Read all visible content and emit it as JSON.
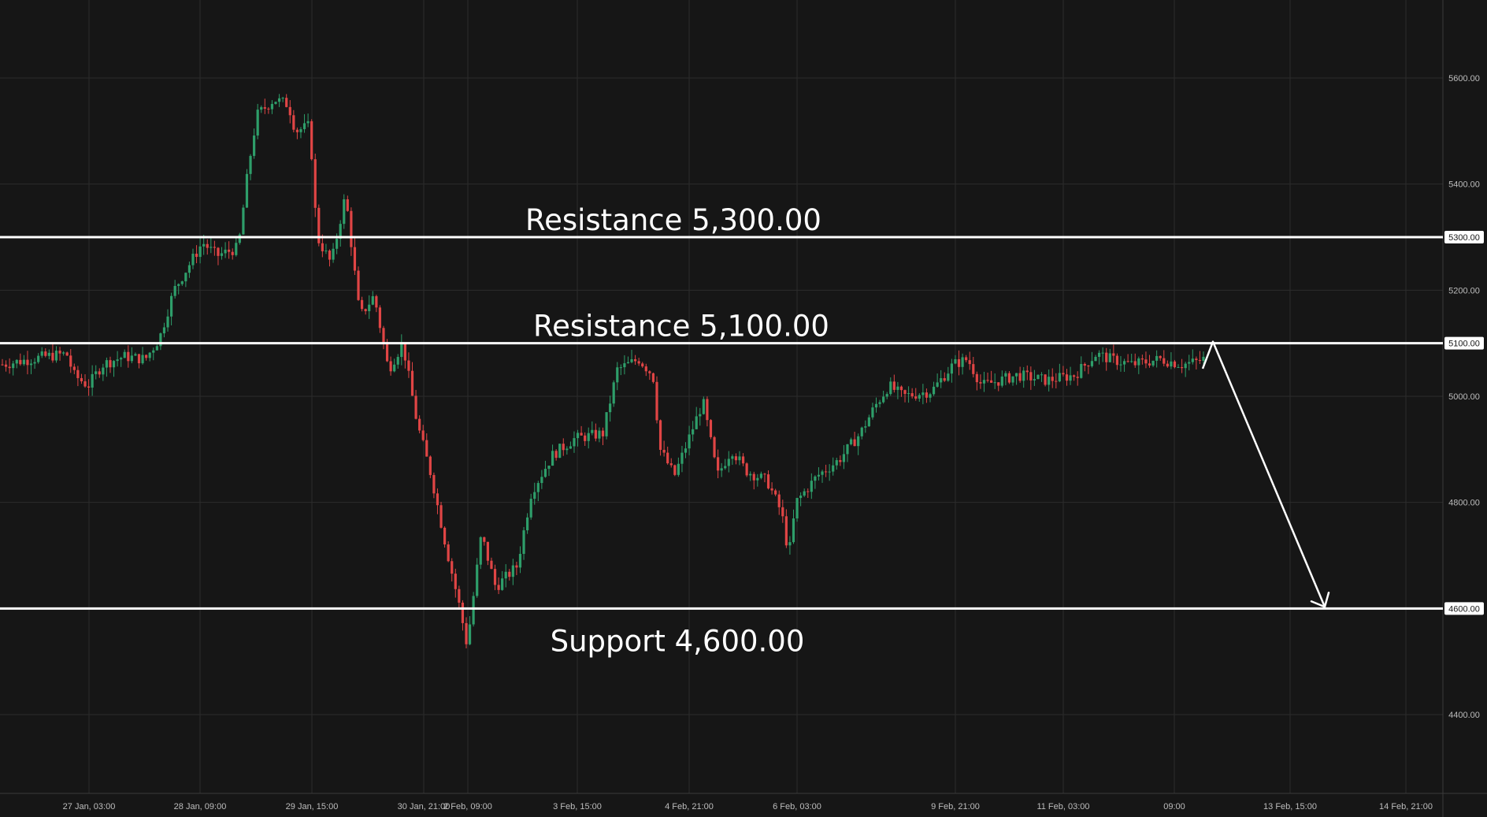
{
  "chart_data": {
    "type": "candlestick",
    "title": "",
    "y_ticks": [
      "5600.00",
      "5400.00",
      "5200.00",
      "5000.00",
      "4800.00",
      "4400.00"
    ],
    "x_ticks": [
      "27 Jan, 03:00",
      "28 Jan, 09:00",
      "29 Jan, 15:00",
      "30 Jan, 21:00",
      "2 Feb, 09:00",
      "3 Feb, 15:00",
      "4 Feb, 21:00",
      "6 Feb, 03:00",
      "9 Feb, 21:00",
      "11 Feb, 03:00",
      "09:00",
      "13 Feb, 15:00",
      "14 Feb, 21:00"
    ],
    "levels": [
      {
        "label": "Resistance 5,300.00",
        "price": 5300,
        "badge": "5300.00"
      },
      {
        "label": "Resistance 5,100.00",
        "price": 5100,
        "badge": "5100.00"
      },
      {
        "label": "Support 4,600.00",
        "price": 4600,
        "badge": "4600.00"
      }
    ],
    "ylim": [
      4250,
      5700
    ],
    "grid": true,
    "colors": {
      "background": "#161616",
      "grid": "#2c2c2c",
      "up": "#2e9e6a",
      "down": "#e04545",
      "level_line": "#ffffff",
      "badge": "#ffffff",
      "axis_text": "#bdbdbd"
    },
    "price_path": [
      [
        0,
        5060
      ],
      [
        0.03,
        5075
      ],
      [
        0.045,
        5080
      ],
      [
        0.05,
        5040
      ],
      [
        0.06,
        5020
      ],
      [
        0.07,
        5060
      ],
      [
        0.085,
        5075
      ],
      [
        0.1,
        5070
      ],
      [
        0.11,
        5110
      ],
      [
        0.12,
        5200
      ],
      [
        0.14,
        5290
      ],
      [
        0.15,
        5265
      ],
      [
        0.165,
        5280
      ],
      [
        0.172,
        5430
      ],
      [
        0.178,
        5530
      ],
      [
        0.19,
        5560
      ],
      [
        0.2,
        5550
      ],
      [
        0.205,
        5500
      ],
      [
        0.215,
        5510
      ],
      [
        0.22,
        5300
      ],
      [
        0.23,
        5250
      ],
      [
        0.24,
        5380
      ],
      [
        0.25,
        5150
      ],
      [
        0.26,
        5190
      ],
      [
        0.27,
        5050
      ],
      [
        0.28,
        5100
      ],
      [
        0.29,
        4950
      ],
      [
        0.3,
        4850
      ],
      [
        0.31,
        4720
      ],
      [
        0.32,
        4600
      ],
      [
        0.325,
        4530
      ],
      [
        0.335,
        4740
      ],
      [
        0.345,
        4640
      ],
      [
        0.36,
        4680
      ],
      [
        0.37,
        4820
      ],
      [
        0.385,
        4890
      ],
      [
        0.4,
        4920
      ],
      [
        0.42,
        4930
      ],
      [
        0.43,
        5050
      ],
      [
        0.445,
        5070
      ],
      [
        0.455,
        5040
      ],
      [
        0.46,
        4900
      ],
      [
        0.47,
        4850
      ],
      [
        0.49,
        4990
      ],
      [
        0.5,
        4850
      ],
      [
        0.51,
        4900
      ],
      [
        0.52,
        4860
      ],
      [
        0.535,
        4840
      ],
      [
        0.545,
        4780
      ],
      [
        0.55,
        4700
      ],
      [
        0.555,
        4800
      ],
      [
        0.57,
        4850
      ],
      [
        0.585,
        4880
      ],
      [
        0.6,
        4930
      ],
      [
        0.61,
        4980
      ],
      [
        0.62,
        5020
      ],
      [
        0.63,
        5000
      ],
      [
        0.65,
        5010
      ],
      [
        0.665,
        5060
      ],
      [
        0.675,
        5070
      ],
      [
        0.685,
        5020
      ],
      [
        0.71,
        5040
      ],
      [
        0.73,
        5030
      ],
      [
        0.75,
        5040
      ],
      [
        0.765,
        5080
      ],
      [
        0.775,
        5070
      ],
      [
        0.79,
        5060
      ],
      [
        0.81,
        5070
      ],
      [
        0.825,
        5060
      ],
      [
        0.835,
        5065
      ],
      [
        0.84,
        5070
      ]
    ],
    "projection": {
      "from_price": 5100,
      "to_price": 4615
    }
  }
}
